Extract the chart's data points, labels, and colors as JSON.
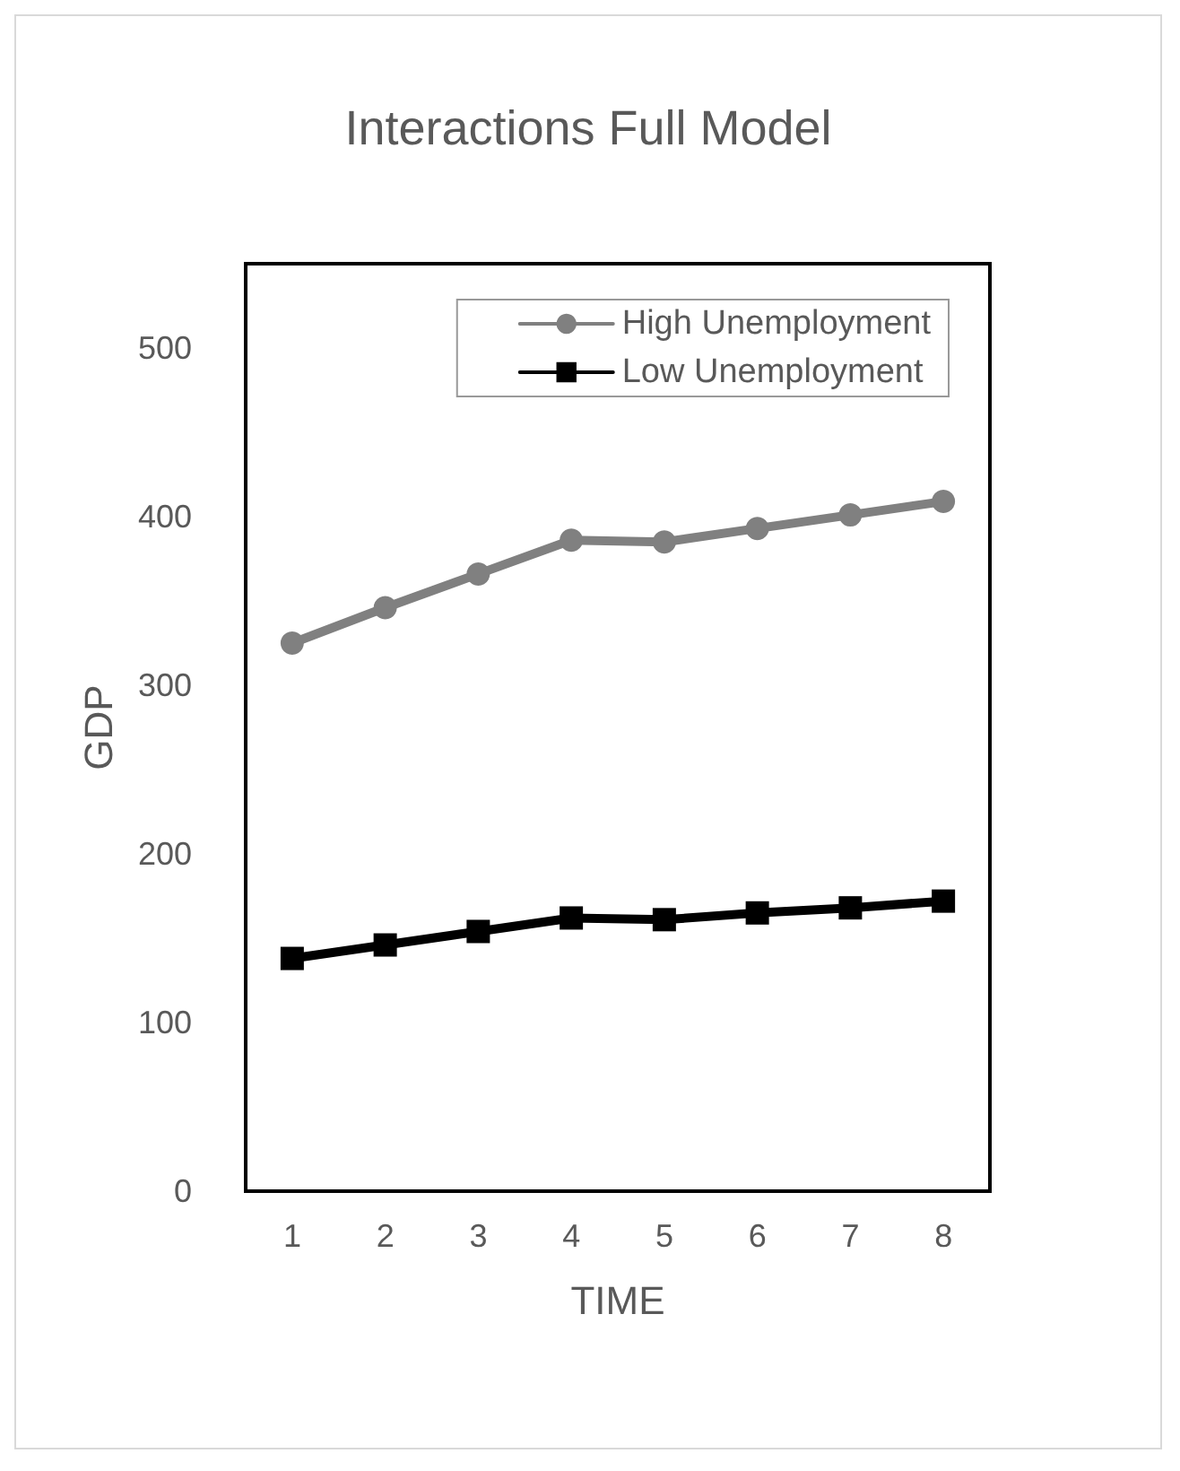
{
  "chart_data": {
    "type": "line",
    "title": "Interactions Full Model",
    "xlabel": "TIME",
    "ylabel": "GDP",
    "categories": [
      "1",
      "2",
      "3",
      "4",
      "5",
      "6",
      "7",
      "8"
    ],
    "series": [
      {
        "name": "High Unemployment",
        "color": "#808080",
        "marker": "circle",
        "values": [
          325,
          346,
          366,
          386,
          385,
          393,
          401,
          409
        ]
      },
      {
        "name": "Low Unemployment",
        "color": "#000000",
        "marker": "square",
        "values": [
          138,
          146,
          154,
          162,
          161,
          165,
          168,
          172
        ]
      }
    ],
    "ylim": [
      0,
      550
    ],
    "yticks": [
      0,
      100,
      200,
      300,
      400,
      500
    ],
    "grid": false,
    "legend": "top right",
    "line_style": "solid"
  }
}
